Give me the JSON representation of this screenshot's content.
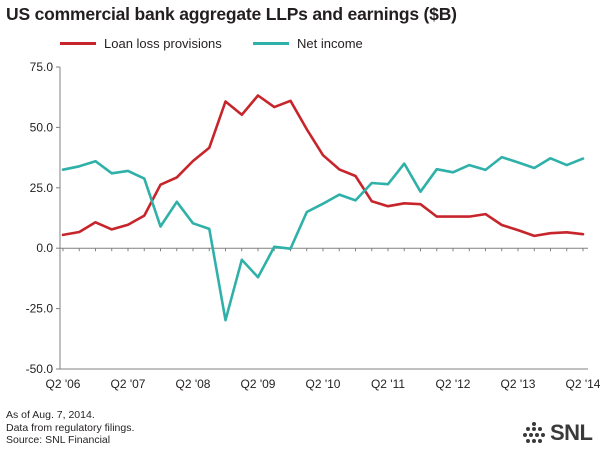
{
  "chart_data": {
    "type": "line",
    "title": "US commercial bank aggregate LLPs and earnings ($B)",
    "xlabel": "",
    "ylabel": "",
    "ylim": [
      -50,
      75
    ],
    "y_ticks": [
      "75.0",
      "50.0",
      "25.0",
      "0.0",
      "-25.0",
      "-50.0"
    ],
    "y_tick_values": [
      75,
      50,
      25,
      0,
      -25,
      -50
    ],
    "x_tick_labels": [
      "Q2 '06",
      "Q2 '07",
      "Q2 '08",
      "Q2 '09",
      "Q2 '10",
      "Q2 '11",
      "Q2 '12",
      "Q2 '13",
      "Q2 '14"
    ],
    "x": [
      "Q2 '06",
      "Q3 '06",
      "Q4 '06",
      "Q1 '07",
      "Q2 '07",
      "Q3 '07",
      "Q4 '07",
      "Q1 '08",
      "Q2 '08",
      "Q3 '08",
      "Q4 '08",
      "Q1 '09",
      "Q2 '09",
      "Q3 '09",
      "Q4 '09",
      "Q1 '10",
      "Q2 '10",
      "Q3 '10",
      "Q4 '10",
      "Q1 '11",
      "Q2 '11",
      "Q3 '11",
      "Q4 '11",
      "Q1 '12",
      "Q2 '12",
      "Q3 '12",
      "Q4 '12",
      "Q1 '13",
      "Q2 '13",
      "Q3 '13",
      "Q4 '13",
      "Q1 '14",
      "Q2 '14"
    ],
    "grid": false,
    "legend_position": "top",
    "series": [
      {
        "name": "Loan loss provisions",
        "color": "#c7252c",
        "values": [
          5.5,
          6.7,
          10.7,
          7.8,
          9.7,
          13.5,
          26.3,
          29.3,
          36.1,
          41.6,
          60.7,
          55.2,
          63.2,
          58.4,
          61.0,
          49.2,
          38.5,
          32.6,
          29.9,
          19.4,
          17.4,
          18.6,
          18.2,
          13.1,
          13.1,
          13.1,
          14.1,
          9.6,
          7.5,
          5.1,
          6.2,
          6.6,
          5.8
        ]
      },
      {
        "name": "Net income",
        "color": "#2fb1a9",
        "values": [
          32.5,
          33.9,
          36.0,
          31.0,
          32.0,
          28.8,
          9.0,
          19.2,
          10.3,
          8.0,
          -29.8,
          -4.8,
          -12.0,
          0.6,
          -0.2,
          15.0,
          18.4,
          22.2,
          19.8,
          27.0,
          26.5,
          35.0,
          23.4,
          32.7,
          31.4,
          34.4,
          32.4,
          37.7,
          35.5,
          33.2,
          37.2,
          34.4,
          37.1
        ]
      }
    ]
  },
  "footnotes": [
    "As of Aug. 7, 2014.",
    "Data from regulatory filings.",
    "Source: SNL Financial"
  ],
  "logo": {
    "text": "SNL",
    "icon": "dot-grid-icon",
    "color": "#3a3a3a"
  }
}
